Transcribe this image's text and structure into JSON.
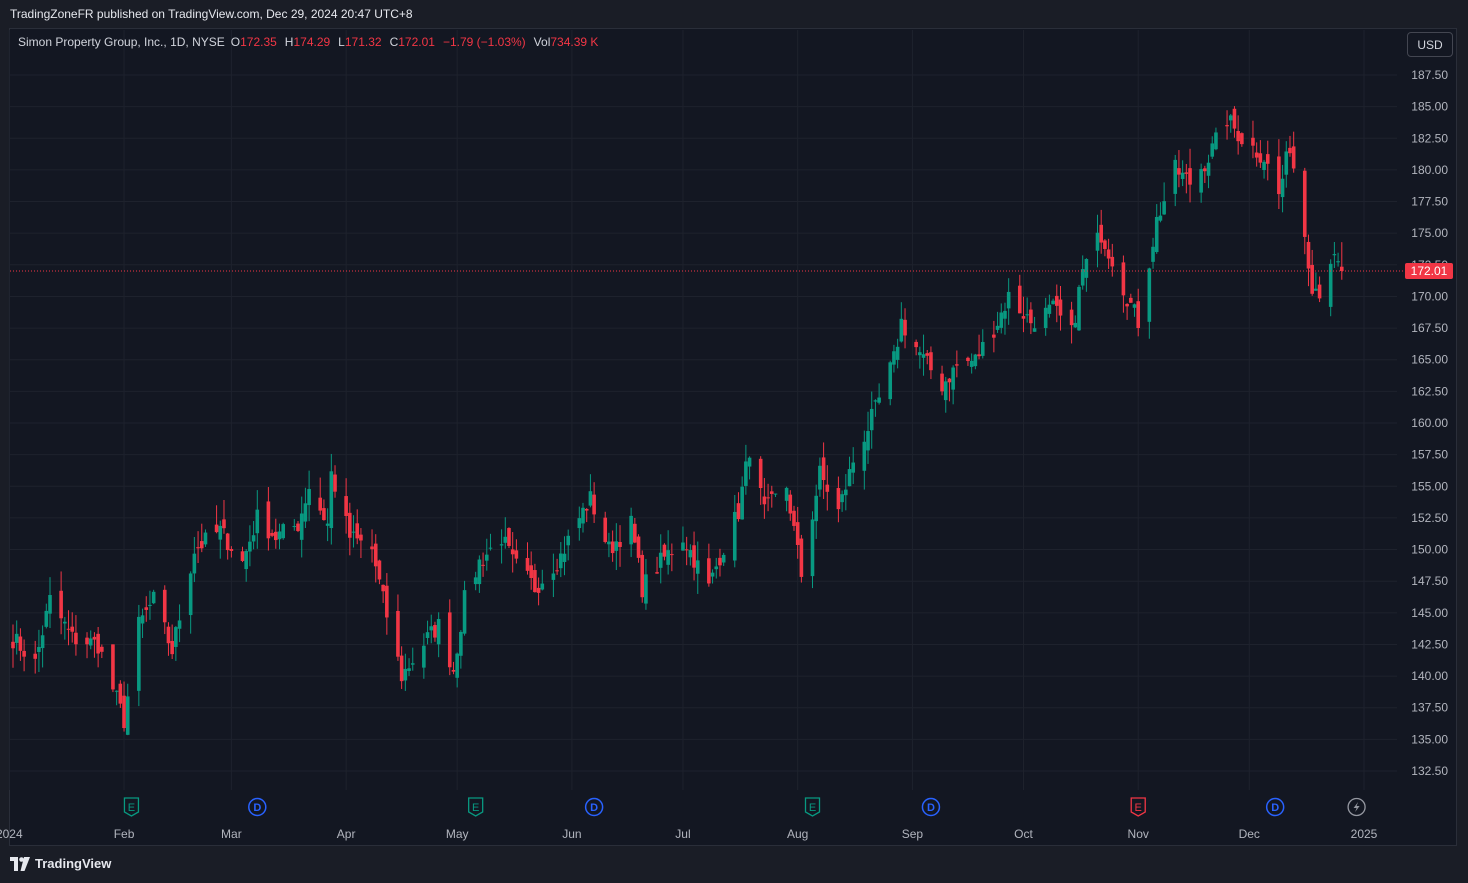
{
  "header": {
    "published": "TradingZoneFR published on TradingView.com, Dec 29, 2024 20:47 UTC+8"
  },
  "legend": {
    "symbol": "Simon Property Group, Inc., 1D, NYSE",
    "open_label": "O",
    "open": "172.35",
    "high_label": "H",
    "high": "174.29",
    "low_label": "L",
    "low": "171.32",
    "close_label": "C",
    "close": "172.01",
    "change": "−1.79 (−1.03%)",
    "vol_label": "Vol",
    "vol": "734.39 K"
  },
  "currency_button": "USD",
  "footer": {
    "brand": "TradingView"
  },
  "colors": {
    "background": "#131722",
    "grid": "#1e222d",
    "up": "#089981",
    "down": "#f23645",
    "axis_text": "#b2b5be",
    "price_line": "#f23645"
  },
  "chart_data": {
    "type": "candlestick",
    "title": "Simon Property Group, Inc., 1D, NYSE",
    "currency": "USD",
    "ylim": [
      131,
      189
    ],
    "y_ticks": [
      "132.50",
      "135.00",
      "137.50",
      "140.00",
      "142.50",
      "145.00",
      "147.50",
      "150.00",
      "152.50",
      "155.00",
      "157.50",
      "160.00",
      "162.50",
      "165.00",
      "167.50",
      "170.00",
      "172.50",
      "175.00",
      "177.50",
      "180.00",
      "182.50",
      "185.00",
      "187.50"
    ],
    "x_ticks": [
      {
        "label": "2024",
        "date": "2024-01-01"
      },
      {
        "label": "Feb",
        "date": "2024-02-01"
      },
      {
        "label": "Mar",
        "date": "2024-03-01"
      },
      {
        "label": "Apr",
        "date": "2024-04-01"
      },
      {
        "label": "May",
        "date": "2024-05-01"
      },
      {
        "label": "Jun",
        "date": "2024-06-01"
      },
      {
        "label": "Jul",
        "date": "2024-07-01"
      },
      {
        "label": "Aug",
        "date": "2024-08-01"
      },
      {
        "label": "Sep",
        "date": "2024-09-01"
      },
      {
        "label": "Oct",
        "date": "2024-10-01"
      },
      {
        "label": "Nov",
        "date": "2024-11-01"
      },
      {
        "label": "Dec",
        "date": "2024-12-01"
      },
      {
        "label": "2025",
        "date": "2025-01-01"
      }
    ],
    "last_price": 172.01,
    "events": [
      {
        "kind": "E",
        "date": "2024-02-03",
        "color": "#089981"
      },
      {
        "kind": "D",
        "date": "2024-03-08",
        "color": "#2962ff"
      },
      {
        "kind": "E",
        "date": "2024-05-06",
        "color": "#089981"
      },
      {
        "kind": "D",
        "date": "2024-06-07",
        "color": "#2962ff"
      },
      {
        "kind": "E",
        "date": "2024-08-05",
        "color": "#089981"
      },
      {
        "kind": "D",
        "date": "2024-09-06",
        "color": "#2962ff"
      },
      {
        "kind": "E",
        "date": "2024-11-01",
        "color": "#f23645"
      },
      {
        "kind": "D",
        "date": "2024-12-08",
        "color": "#2962ff"
      },
      {
        "kind": "flash",
        "date": "2024-12-30",
        "color": "#9598a1"
      }
    ],
    "close_keyframes": [
      [
        "2024-01-02",
        143.0
      ],
      [
        "2024-01-08",
        141.0
      ],
      [
        "2024-01-12",
        146.0
      ],
      [
        "2024-01-18",
        143.0
      ],
      [
        "2024-01-25",
        142.5
      ],
      [
        "2024-01-29",
        139.0
      ],
      [
        "2024-02-01",
        136.5
      ],
      [
        "2024-02-05",
        144.0
      ],
      [
        "2024-02-09",
        146.0
      ],
      [
        "2024-02-14",
        142.0
      ],
      [
        "2024-02-20",
        150.0
      ],
      [
        "2024-02-27",
        151.5
      ],
      [
        "2024-03-04",
        149.0
      ],
      [
        "2024-03-08",
        152.5
      ],
      [
        "2024-03-13",
        151.0
      ],
      [
        "2024-03-19",
        152.0
      ],
      [
        "2024-03-22",
        155.0
      ],
      [
        "2024-03-27",
        152.0
      ],
      [
        "2024-03-28",
        156.0
      ],
      [
        "2024-04-02",
        151.0
      ],
      [
        "2024-04-08",
        150.0
      ],
      [
        "2024-04-11",
        146.0
      ],
      [
        "2024-04-16",
        140.0
      ],
      [
        "2024-04-23",
        143.0
      ],
      [
        "2024-04-26",
        144.0
      ],
      [
        "2024-04-30",
        140.5
      ],
      [
        "2024-05-03",
        146.0
      ],
      [
        "2024-05-07",
        149.0
      ],
      [
        "2024-05-13",
        151.0
      ],
      [
        "2024-05-16",
        149.0
      ],
      [
        "2024-05-22",
        147.0
      ],
      [
        "2024-05-29",
        149.5
      ],
      [
        "2024-06-03",
        152.5
      ],
      [
        "2024-06-06",
        154.0
      ],
      [
        "2024-06-11",
        150.0
      ],
      [
        "2024-06-17",
        152.0
      ],
      [
        "2024-06-20",
        147.0
      ],
      [
        "2024-06-25",
        149.0
      ],
      [
        "2024-07-01",
        151.0
      ],
      [
        "2024-07-08",
        147.0
      ],
      [
        "2024-07-11",
        149.5
      ],
      [
        "2024-07-16",
        153.0
      ],
      [
        "2024-07-19",
        158.0
      ],
      [
        "2024-07-23",
        153.0
      ],
      [
        "2024-07-29",
        155.0
      ],
      [
        "2024-08-02",
        148.0
      ],
      [
        "2024-08-07",
        156.0
      ],
      [
        "2024-08-12",
        153.0
      ],
      [
        "2024-08-16",
        157.0
      ],
      [
        "2024-08-22",
        161.0
      ],
      [
        "2024-08-27",
        165.0
      ],
      [
        "2024-08-29",
        168.0
      ],
      [
        "2024-09-04",
        165.0
      ],
      [
        "2024-09-09",
        163.0
      ],
      [
        "2024-09-13",
        164.5
      ],
      [
        "2024-09-18",
        165.0
      ],
      [
        "2024-09-24",
        168.0
      ],
      [
        "2024-09-27",
        170.0
      ],
      [
        "2024-10-03",
        168.0
      ],
      [
        "2024-10-09",
        169.0
      ],
      [
        "2024-10-14",
        167.0
      ],
      [
        "2024-10-17",
        172.0
      ],
      [
        "2024-10-22",
        175.0
      ],
      [
        "2024-10-25",
        173.0
      ],
      [
        "2024-10-29",
        170.0
      ],
      [
        "2024-11-01",
        168.0
      ],
      [
        "2024-11-06",
        176.0
      ],
      [
        "2024-11-11",
        180.0
      ],
      [
        "2024-11-15",
        179.0
      ],
      [
        "2024-11-20",
        181.0
      ],
      [
        "2024-11-25",
        184.0
      ],
      [
        "2024-11-29",
        182.5
      ],
      [
        "2024-12-05",
        181.0
      ],
      [
        "2024-12-09",
        178.0
      ],
      [
        "2024-12-12",
        182.0
      ],
      [
        "2024-12-16",
        175.0
      ],
      [
        "2024-12-18",
        171.0
      ],
      [
        "2024-12-20",
        170.5
      ],
      [
        "2024-12-23",
        173.0
      ],
      [
        "2024-12-26",
        172.01
      ]
    ]
  }
}
